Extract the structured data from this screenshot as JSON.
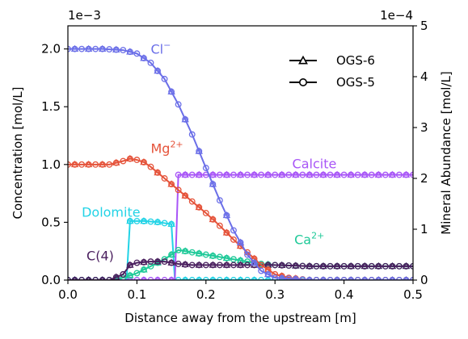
{
  "chart_data": {
    "type": "line",
    "xlabel": "Distance away from the upstream [m]",
    "ylabel_left": "Concentration [mol/L]",
    "ylabel_right": "Mineral Abundance [mol/L]",
    "exp_left": "1e−3",
    "exp_right": "1e−4",
    "xlim": [
      0.0,
      0.5
    ],
    "ylim_left": [
      0.0,
      2.2
    ],
    "ylim_right": [
      0.0,
      5.0
    ],
    "x_ticks": [
      "0.0",
      "0.1",
      "0.2",
      "0.3",
      "0.4",
      "0.5"
    ],
    "y_left_ticks": [
      "0.0",
      "0.5",
      "1.0",
      "1.5",
      "2.0"
    ],
    "y_right_ticks": [
      "0",
      "1",
      "2",
      "3",
      "4",
      "5"
    ],
    "legend": [
      {
        "label": "OGS-6",
        "marker": "triangle"
      },
      {
        "label": "OGS-5",
        "marker": "circle"
      }
    ],
    "series": [
      {
        "label": "Cl",
        "label_sup": "−",
        "axis": "left",
        "color": "#6b6fe8",
        "x": [
          0.0,
          0.05,
          0.08,
          0.1,
          0.12,
          0.14,
          0.16,
          0.18,
          0.2,
          0.22,
          0.24,
          0.26,
          0.28,
          0.3,
          0.35,
          0.4,
          0.5
        ],
        "y": [
          2.0,
          2.0,
          1.99,
          1.96,
          1.88,
          1.74,
          1.52,
          1.26,
          0.97,
          0.69,
          0.43,
          0.22,
          0.08,
          0.02,
          0.0,
          0.0,
          0.0
        ]
      },
      {
        "label": "Mg",
        "label_sup": "2+",
        "axis": "left",
        "color": "#e5533a",
        "x": [
          0.0,
          0.03,
          0.06,
          0.08,
          0.09,
          0.1,
          0.11,
          0.12,
          0.14,
          0.16,
          0.18,
          0.2,
          0.22,
          0.24,
          0.26,
          0.28,
          0.3,
          0.32,
          0.35,
          0.4,
          0.5
        ],
        "y": [
          1.0,
          1.0,
          1.0,
          1.03,
          1.05,
          1.04,
          1.02,
          0.98,
          0.88,
          0.78,
          0.68,
          0.58,
          0.47,
          0.35,
          0.24,
          0.13,
          0.05,
          0.02,
          0.0,
          0.0,
          0.0
        ]
      },
      {
        "label": "Ca",
        "label_sup": "2+",
        "axis": "left",
        "color": "#1ec998",
        "x": [
          0.0,
          0.06,
          0.08,
          0.1,
          0.12,
          0.14,
          0.15,
          0.16,
          0.18,
          0.2,
          0.22,
          0.24,
          0.26,
          0.28,
          0.3,
          0.35,
          0.4,
          0.5
        ],
        "y": [
          0.0,
          0.0,
          0.02,
          0.06,
          0.12,
          0.18,
          0.22,
          0.26,
          0.24,
          0.22,
          0.2,
          0.18,
          0.16,
          0.14,
          0.13,
          0.12,
          0.12,
          0.12
        ]
      },
      {
        "label": "C(4)",
        "label_sup": "",
        "axis": "left",
        "color": "#4a1f5e",
        "x": [
          0.0,
          0.06,
          0.08,
          0.09,
          0.1,
          0.12,
          0.14,
          0.16,
          0.18,
          0.2,
          0.22,
          0.24,
          0.26,
          0.28,
          0.3,
          0.35,
          0.4,
          0.5
        ],
        "y": [
          0.0,
          0.0,
          0.05,
          0.13,
          0.15,
          0.16,
          0.16,
          0.14,
          0.13,
          0.13,
          0.13,
          0.13,
          0.13,
          0.13,
          0.13,
          0.12,
          0.12,
          0.12
        ]
      },
      {
        "label": "Dolomite",
        "label_sup": "",
        "axis": "right",
        "color": "#22d3e6",
        "x": [
          0.0,
          0.085,
          0.09,
          0.1,
          0.11,
          0.12,
          0.13,
          0.14,
          0.15,
          0.155,
          0.16,
          0.2,
          0.3,
          0.4,
          0.5
        ],
        "y": [
          0.0,
          0.0,
          1.16,
          1.16,
          1.16,
          1.15,
          1.14,
          1.12,
          1.1,
          0.0,
          0.0,
          0.0,
          0.0,
          0.0,
          0.0
        ]
      },
      {
        "label": "Calcite",
        "label_sup": "",
        "axis": "right",
        "color": "#a855f7",
        "x": [
          0.0,
          0.155,
          0.16,
          0.2,
          0.25,
          0.3,
          0.35,
          0.4,
          0.45,
          0.5
        ],
        "y": [
          0.0,
          0.0,
          2.07,
          2.07,
          2.07,
          2.07,
          2.07,
          2.07,
          2.07,
          2.07
        ]
      }
    ]
  }
}
